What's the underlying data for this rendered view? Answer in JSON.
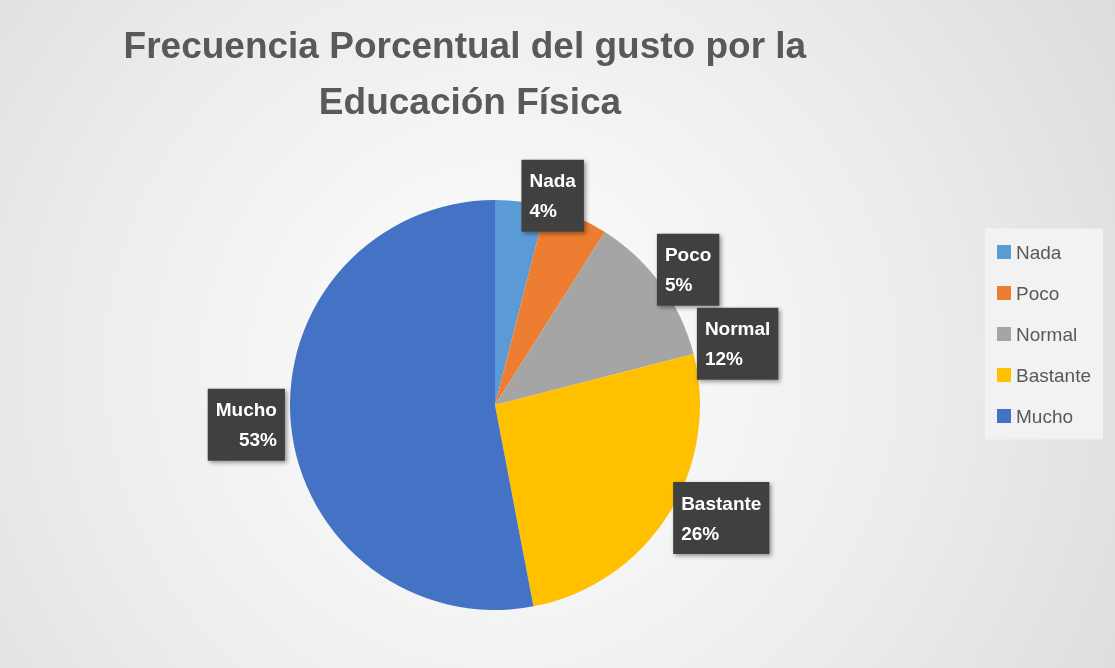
{
  "chart_data": {
    "type": "pie",
    "title": "Frecuencia Porcentual del gusto por la Educación Física",
    "categories": [
      "Nada",
      "Poco",
      "Normal",
      "Bastante",
      "Mucho"
    ],
    "values": [
      4,
      5,
      12,
      26,
      53
    ],
    "value_labels": [
      "4%",
      "5%",
      "12%",
      "26%",
      "53%"
    ],
    "colors": [
      "#5b9bd5",
      "#ed7d31",
      "#a5a5a5",
      "#ffc000",
      "#4472c4"
    ],
    "legend": "right"
  }
}
